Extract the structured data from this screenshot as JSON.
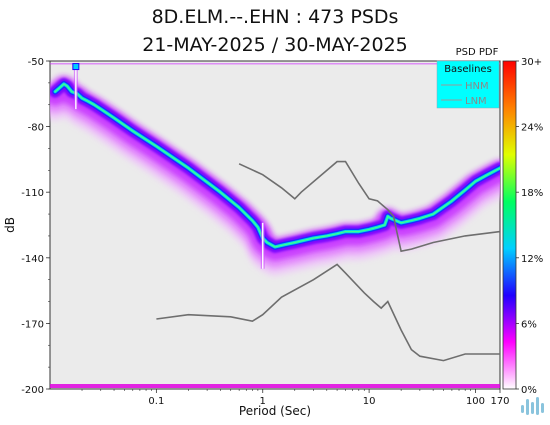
{
  "chart_data": {
    "type": "heatmap",
    "title": "8D.ELM.--.EHN : 473 PSDs",
    "subtitle": "21-MAY-2025 / 30-MAY-2025",
    "xlabel": "Period (Sec)",
    "ylabel": "dB",
    "x_scale": "log",
    "xlim": [
      0.01,
      170
    ],
    "ylim": [
      -200,
      -50
    ],
    "x_ticks": [
      {
        "value": 0.1,
        "label": "0.1"
      },
      {
        "value": 1,
        "label": "1"
      },
      {
        "value": 10,
        "label": "10"
      },
      {
        "value": 100,
        "label": "100"
      },
      {
        "value": 170,
        "label": "170"
      }
    ],
    "y_ticks": [
      {
        "value": -50,
        "label": "-50"
      },
      {
        "value": -80,
        "label": "-80"
      },
      {
        "value": -110,
        "label": "-110"
      },
      {
        "value": -140,
        "label": "-140"
      },
      {
        "value": -170,
        "label": "-170"
      },
      {
        "value": -200,
        "label": "-200"
      }
    ],
    "colorbar": {
      "title": "PSD PDF",
      "ticks": [
        "0%",
        "6%",
        "12%",
        "18%",
        "24%",
        "30+"
      ],
      "colors": [
        "#ffffff",
        "#ff00ff",
        "#2000ff",
        "#00d0ff",
        "#00ff60",
        "#e0ff00",
        "#ff8000",
        "#ff0000"
      ]
    },
    "legend": {
      "title": "Baselines",
      "placement": "top-right",
      "background": "#00ffff",
      "entries": [
        "HNM",
        "LNM"
      ]
    },
    "mode_curve": [
      [
        0.0112,
        -64
      ],
      [
        0.0125,
        -62
      ],
      [
        0.0135,
        -60.5
      ],
      [
        0.0145,
        -61.5
      ],
      [
        0.016,
        -64
      ],
      [
        0.018,
        -65
      ],
      [
        0.02,
        -67
      ],
      [
        0.022,
        -68
      ],
      [
        0.026,
        -70
      ],
      [
        0.03,
        -72
      ],
      [
        0.04,
        -76
      ],
      [
        0.06,
        -82
      ],
      [
        0.1,
        -89
      ],
      [
        0.2,
        -99
      ],
      [
        0.4,
        -110
      ],
      [
        0.6,
        -117
      ],
      [
        0.8,
        -123
      ],
      [
        0.9,
        -126
      ],
      [
        1.0,
        -131
      ],
      [
        1.1,
        -133
      ],
      [
        1.3,
        -135
      ],
      [
        1.6,
        -134
      ],
      [
        2.0,
        -133
      ],
      [
        3.0,
        -131
      ],
      [
        4.0,
        -130
      ],
      [
        5.0,
        -129
      ],
      [
        6.0,
        -128
      ],
      [
        8.0,
        -128
      ],
      [
        10.0,
        -127
      ],
      [
        12.0,
        -126
      ],
      [
        14.0,
        -125
      ],
      [
        15.0,
        -121
      ],
      [
        16.0,
        -122
      ],
      [
        20.0,
        -124
      ],
      [
        25.0,
        -123
      ],
      [
        30.0,
        -122
      ],
      [
        40.0,
        -120
      ],
      [
        60.0,
        -114
      ],
      [
        80.0,
        -109
      ],
      [
        100.0,
        -105
      ],
      [
        130.0,
        -102
      ],
      [
        170.0,
        -99
      ]
    ],
    "spike_periods": [
      0.0175,
      1.0
    ],
    "hnm": [
      [
        0.6,
        -97
      ],
      [
        1.0,
        -102
      ],
      [
        1.5,
        -108
      ],
      [
        2.0,
        -113
      ],
      [
        2.3,
        -110
      ],
      [
        5.0,
        -96
      ],
      [
        6.0,
        -96
      ],
      [
        8.0,
        -106
      ],
      [
        10.0,
        -113
      ],
      [
        12.0,
        -114
      ],
      [
        15.0,
        -118
      ],
      [
        17.0,
        -121
      ],
      [
        18.0,
        -127
      ],
      [
        20.0,
        -137
      ],
      [
        25.0,
        -136
      ],
      [
        40.0,
        -133
      ],
      [
        80.0,
        -130
      ],
      [
        170.0,
        -128
      ]
    ],
    "lnm": [
      [
        0.1,
        -168
      ],
      [
        0.2,
        -166
      ],
      [
        0.5,
        -167
      ],
      [
        0.8,
        -169
      ],
      [
        1.0,
        -166
      ],
      [
        1.5,
        -158
      ],
      [
        3.0,
        -150
      ],
      [
        5.0,
        -143
      ],
      [
        6.0,
        -147
      ],
      [
        9.0,
        -156
      ],
      [
        11.0,
        -160
      ],
      [
        13.0,
        -163
      ],
      [
        15.0,
        -160
      ],
      [
        20.0,
        -173
      ],
      [
        25.0,
        -182
      ],
      [
        30.0,
        -185
      ],
      [
        50.0,
        -187
      ],
      [
        80.0,
        -184
      ],
      [
        170.0,
        -184
      ]
    ]
  }
}
